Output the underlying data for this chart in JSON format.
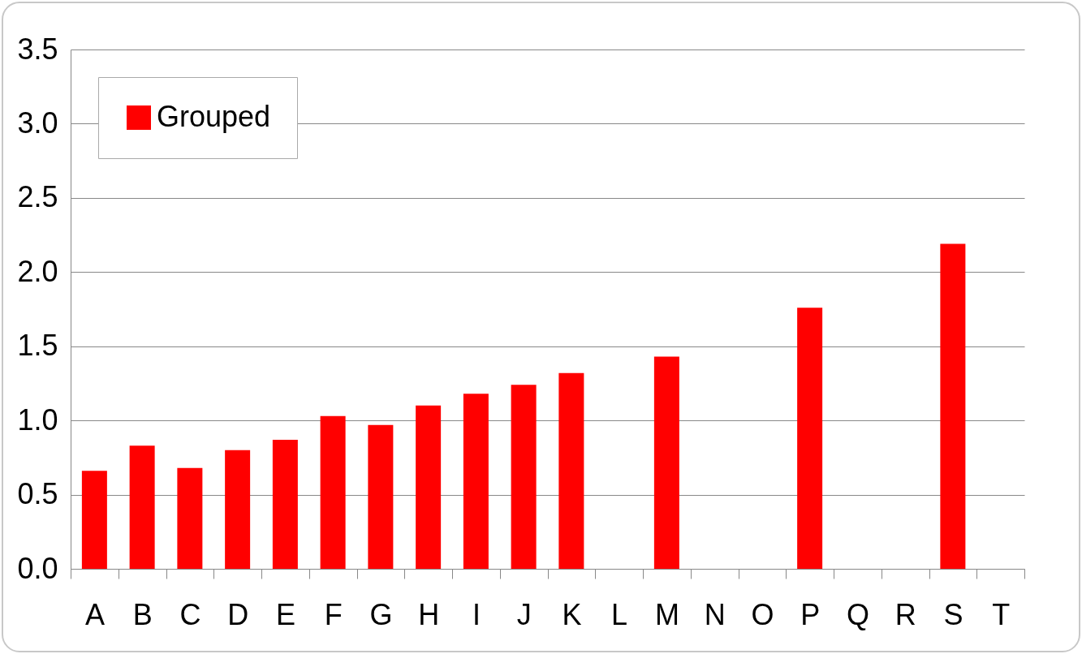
{
  "chart_data": {
    "type": "bar",
    "categories": [
      "A",
      "B",
      "C",
      "D",
      "E",
      "F",
      "G",
      "H",
      "I",
      "J",
      "K",
      "L",
      "M",
      "N",
      "O",
      "P",
      "Q",
      "R",
      "S",
      "T"
    ],
    "series": [
      {
        "name": "Grouped",
        "color": "#ff0000",
        "values": [
          0.66,
          0.83,
          0.68,
          0.8,
          0.87,
          1.03,
          0.97,
          1.1,
          1.18,
          1.24,
          1.32,
          null,
          1.43,
          null,
          null,
          1.76,
          null,
          null,
          2.19,
          null
        ]
      }
    ],
    "ylim": [
      0,
      3.5
    ],
    "yticks": [
      {
        "value": 0,
        "label": "0.0"
      },
      {
        "value": 0.5,
        "label": "0.5"
      },
      {
        "value": 1,
        "label": "1.0"
      },
      {
        "value": 1.5,
        "label": "1.5"
      },
      {
        "value": 2,
        "label": "2.0"
      },
      {
        "value": 2.5,
        "label": "2.5"
      },
      {
        "value": 3,
        "label": "3.0"
      },
      {
        "value": 3.5,
        "label": "3.5"
      }
    ],
    "grid": "y",
    "legend": "top left"
  }
}
